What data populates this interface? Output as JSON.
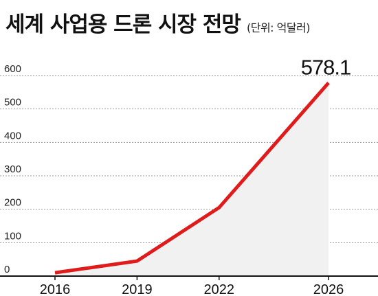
{
  "title": "세계 사업용 드론 시장 전망",
  "unit_note": "(단위: 억달러)",
  "colors": {
    "line": "#e01b1b",
    "area": "#f1f1f1",
    "grid": "#9a9a9a",
    "axis": "#111111"
  },
  "chart_data": {
    "type": "line",
    "title": "세계 사업용 드론 시장 전망",
    "subtitle": "(단위: 억달러)",
    "xlabel": "",
    "ylabel": "",
    "categories": [
      "2016",
      "2019",
      "2022",
      "2026"
    ],
    "x": [
      2016,
      2019,
      2022,
      2026
    ],
    "series": [
      {
        "values": [
          10,
          45,
          205,
          578.1
        ]
      }
    ],
    "ylim": [
      0,
      600
    ],
    "yticks": [
      "0",
      "100",
      "200",
      "300",
      "400",
      "500",
      "600"
    ],
    "grid": true,
    "legend": "none",
    "annotations": [
      {
        "label": "578.1"
      }
    ]
  }
}
